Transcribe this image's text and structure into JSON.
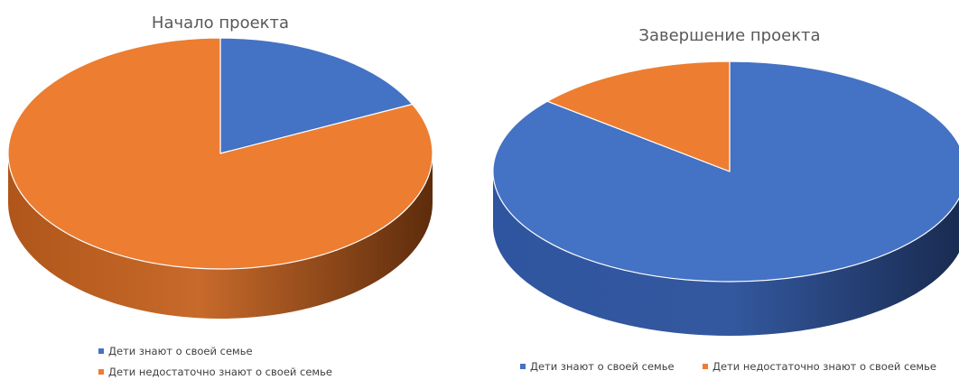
{
  "chart_data": [
    {
      "type": "pie",
      "title": "Начало проекта",
      "categories": [
        "Дети знают о своей семье",
        "Дети недостаточно знают о своей семье"
      ],
      "values": [
        18,
        82
      ],
      "colors": [
        "#4472C4",
        "#ED7D31"
      ],
      "legend_position": "bottom-left, stacked",
      "style": "3d"
    },
    {
      "type": "pie",
      "title": "Завершение проекта",
      "categories": [
        "Дети знают о своей семье",
        "Дети недостаточно знают о своей семье"
      ],
      "values": [
        86,
        14
      ],
      "colors": [
        "#4472C4",
        "#ED7D31"
      ],
      "legend_position": "bottom, single row",
      "style": "3d"
    }
  ]
}
